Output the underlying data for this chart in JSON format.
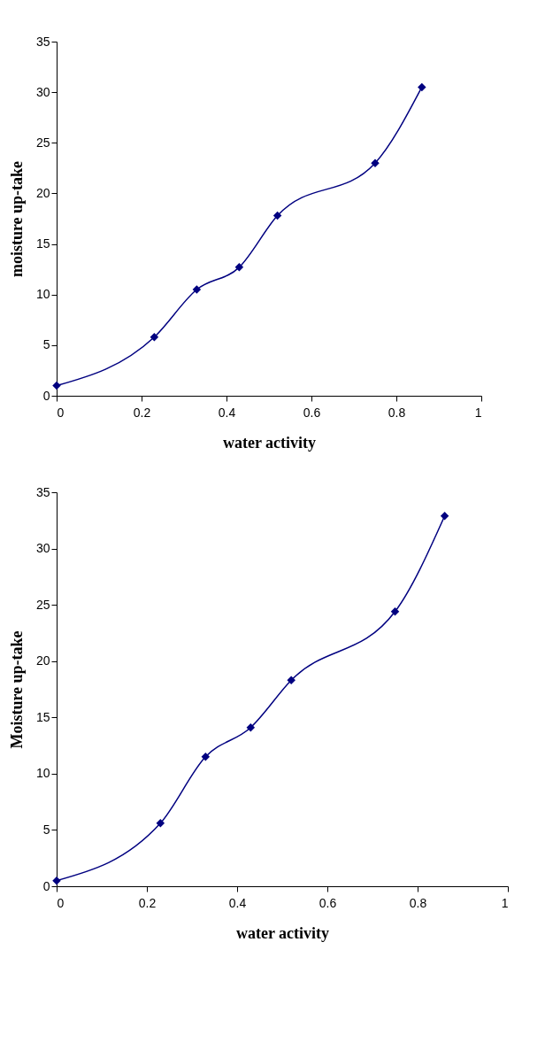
{
  "chart_data": [
    {
      "type": "line",
      "xlabel": "water activity",
      "ylabel": "moisture up-take",
      "x": [
        0,
        0.23,
        0.33,
        0.43,
        0.52,
        0.75,
        0.86
      ],
      "series": [
        {
          "color": "#000080",
          "values": [
            1.0,
            5.8,
            10.5,
            12.7,
            17.8,
            23.0,
            30.5
          ]
        }
      ],
      "xlim": [
        0,
        1
      ],
      "xticks": [
        0,
        0.2,
        0.4,
        0.6,
        0.8,
        1
      ],
      "ylim": [
        0,
        35
      ],
      "yticks": [
        0,
        5,
        10,
        15,
        20,
        25,
        30,
        35
      ],
      "grid": false,
      "marker": "diamond",
      "line_style": "solid"
    },
    {
      "type": "line",
      "xlabel": "water activity",
      "ylabel": "Moisture up-take",
      "x": [
        0,
        0.23,
        0.33,
        0.43,
        0.52,
        0.75,
        0.86
      ],
      "series": [
        {
          "color": "#000080",
          "values": [
            0.5,
            5.6,
            11.5,
            14.1,
            18.3,
            24.4,
            32.9
          ]
        }
      ],
      "xlim": [
        0,
        1
      ],
      "xticks": [
        0,
        0.2,
        0.4,
        0.6,
        0.8,
        1
      ],
      "ylim": [
        0,
        35
      ],
      "yticks": [
        0,
        5,
        10,
        15,
        20,
        25,
        30,
        35
      ],
      "grid": false,
      "marker": "diamond",
      "line_style": "solid"
    }
  ]
}
